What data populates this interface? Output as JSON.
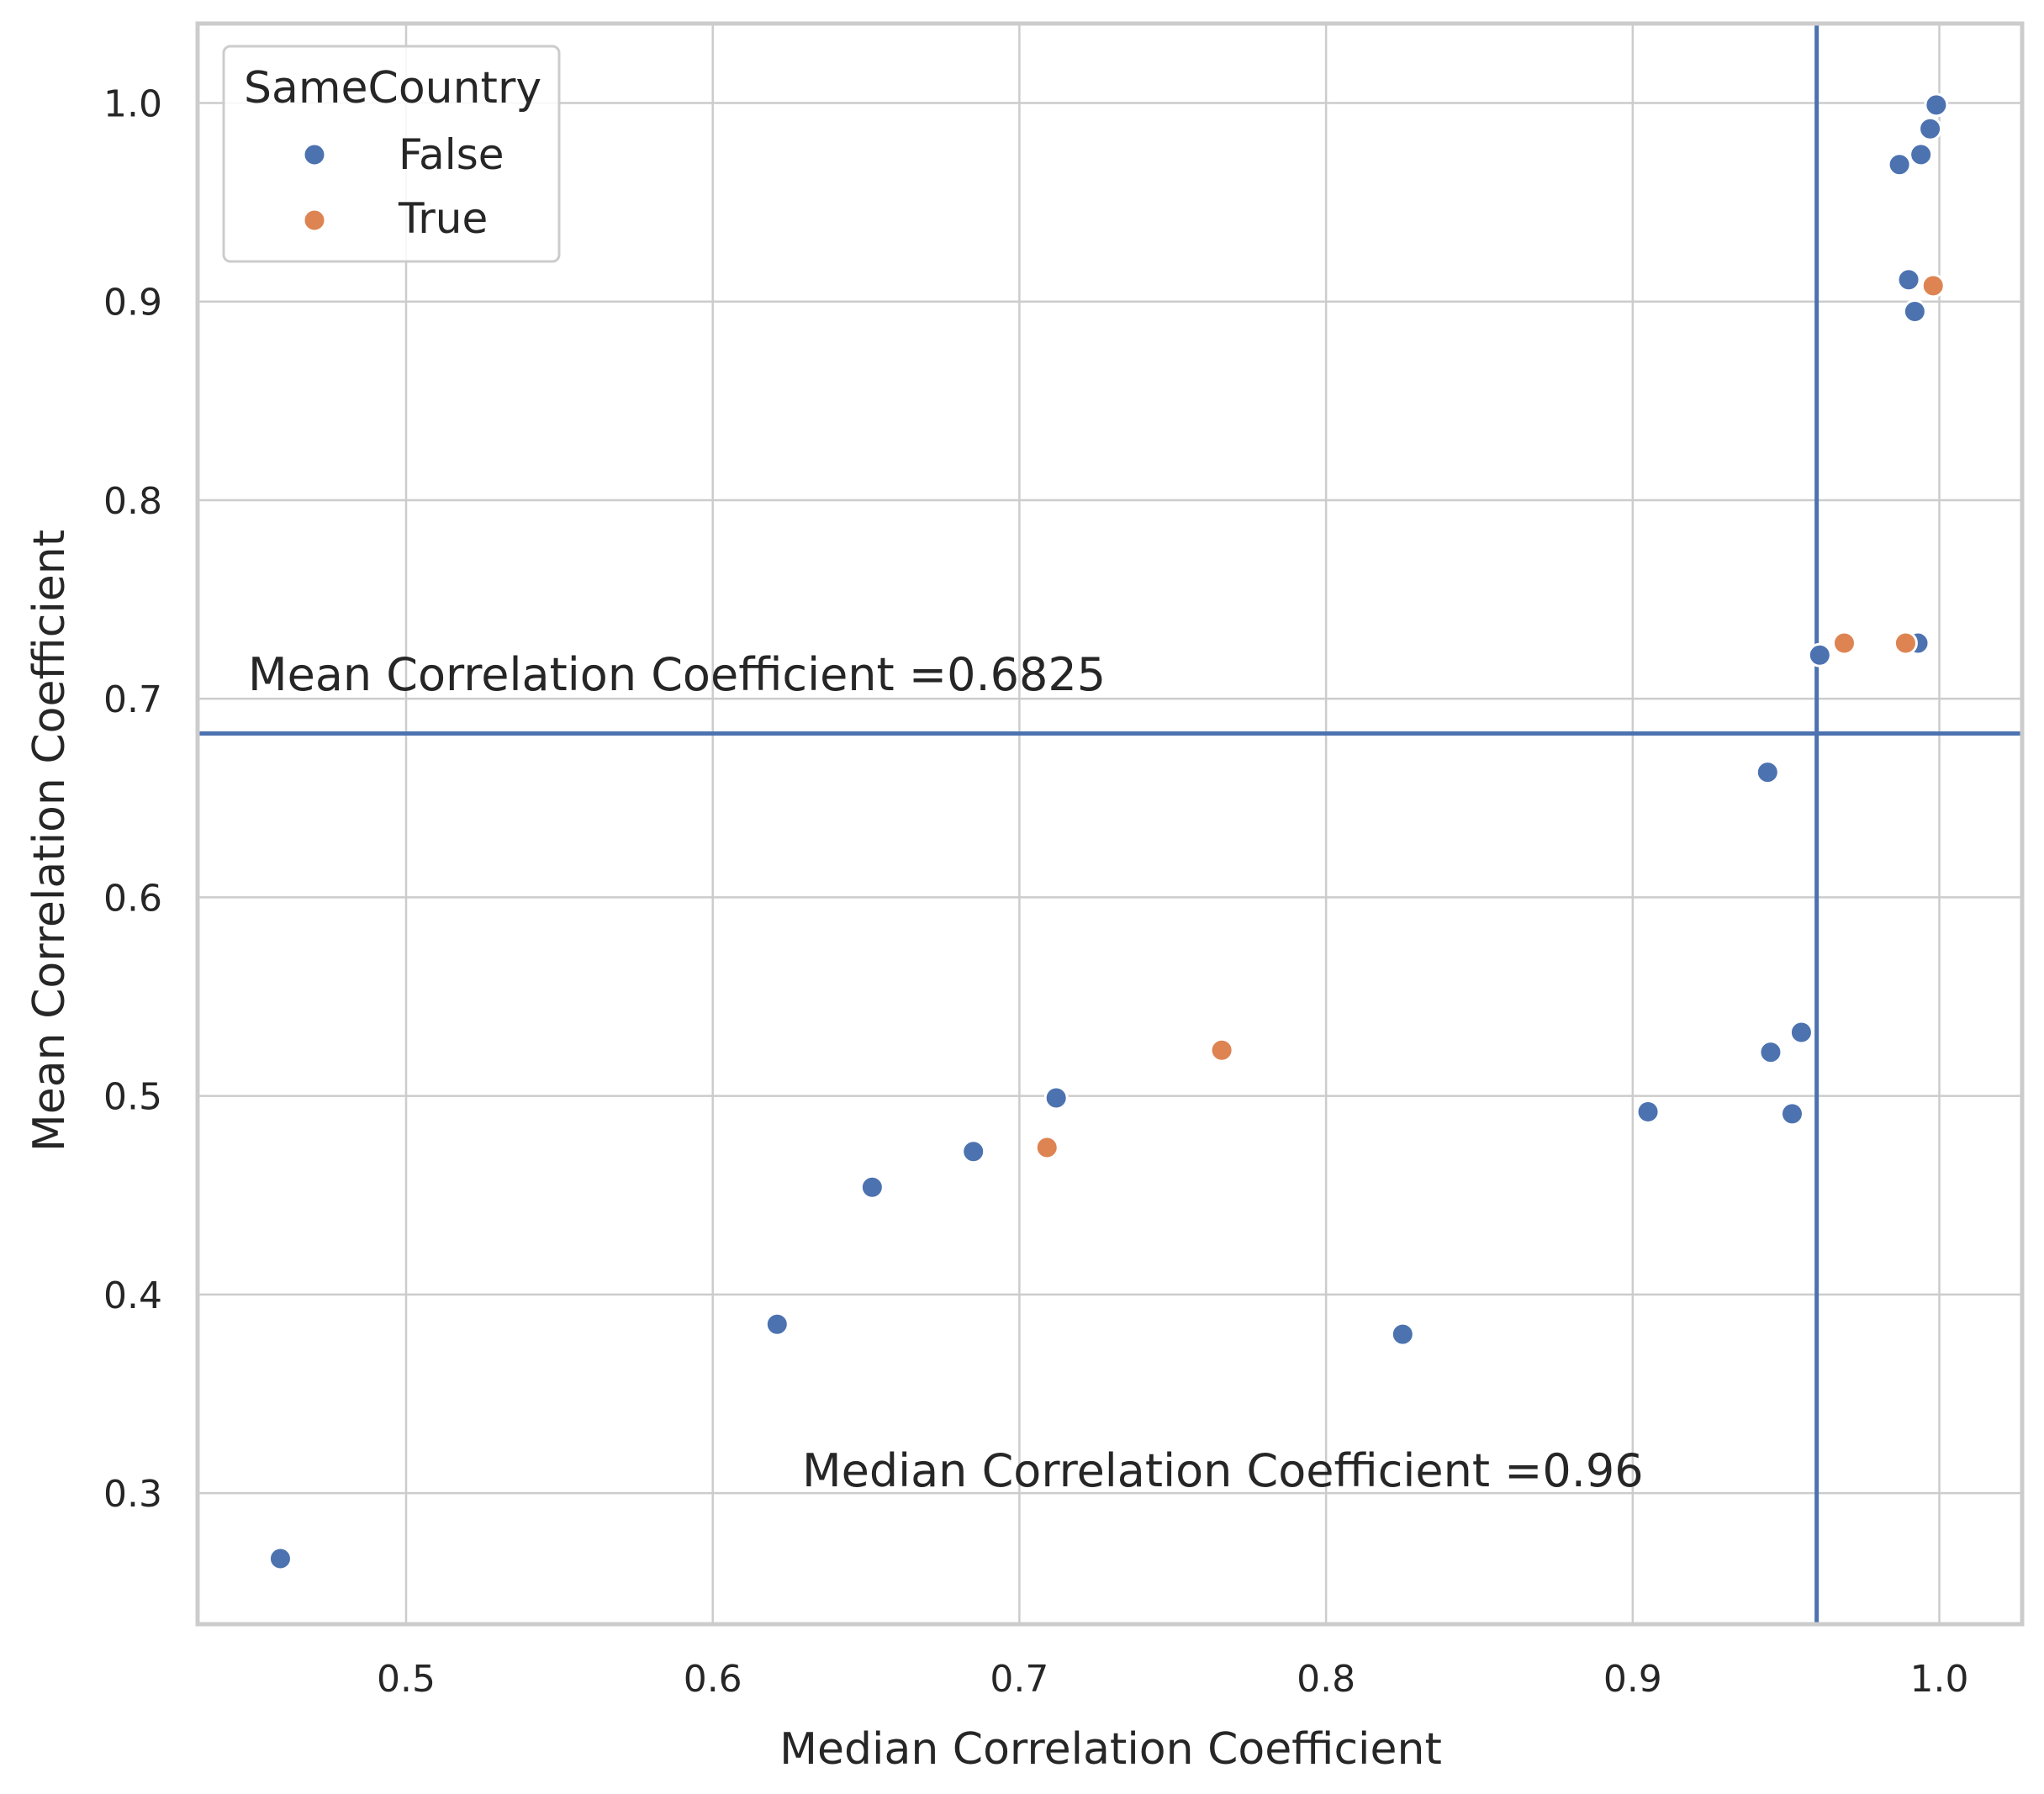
{
  "chart_data": {
    "type": "scatter",
    "title": "",
    "xlabel": "Median Correlation Coefficient",
    "ylabel": "Mean Correlation Coefficient",
    "xlim": [
      0.432,
      1.027
    ],
    "ylim": [
      0.234,
      1.04
    ],
    "grid": true,
    "xticks": [
      0.5,
      0.6,
      0.7,
      0.8,
      0.9,
      1.0
    ],
    "xtick_labels": [
      "0.5",
      "0.6",
      "0.7",
      "0.8",
      "0.9",
      "1.0"
    ],
    "yticks": [
      0.3,
      0.4,
      0.5,
      0.6,
      0.7,
      0.8,
      0.9,
      1.0
    ],
    "ytick_labels": [
      "0.3",
      "0.4",
      "0.5",
      "0.6",
      "0.7",
      "0.8",
      "0.9",
      "1.0"
    ],
    "legend": {
      "title": "SameCountry",
      "location": "top-left",
      "entries": [
        {
          "label": "False",
          "color": "#4c72b0"
        },
        {
          "label": "True",
          "color": "#dd8452"
        }
      ]
    },
    "reference_lines": [
      {
        "orientation": "horizontal",
        "value": 0.6825,
        "color": "#4c72b0",
        "label": "Mean Correlation Coefficient =0.6825"
      },
      {
        "orientation": "vertical",
        "value": 0.96,
        "color": "#4c72b0",
        "label": "Median Correlation Coefficient =0.96"
      }
    ],
    "series": [
      {
        "name": "False",
        "color": "#4c72b0",
        "points": [
          {
            "x": 0.459,
            "y": 0.267
          },
          {
            "x": 0.621,
            "y": 0.385
          },
          {
            "x": 0.652,
            "y": 0.454
          },
          {
            "x": 0.685,
            "y": 0.472
          },
          {
            "x": 0.712,
            "y": 0.499
          },
          {
            "x": 0.825,
            "y": 0.38
          },
          {
            "x": 0.905,
            "y": 0.492
          },
          {
            "x": 0.944,
            "y": 0.663
          },
          {
            "x": 0.945,
            "y": 0.522
          },
          {
            "x": 0.952,
            "y": 0.491
          },
          {
            "x": 0.955,
            "y": 0.532
          },
          {
            "x": 0.961,
            "y": 0.722
          },
          {
            "x": 0.987,
            "y": 0.969
          },
          {
            "x": 0.99,
            "y": 0.911
          },
          {
            "x": 0.992,
            "y": 0.895
          },
          {
            "x": 0.993,
            "y": 0.728
          },
          {
            "x": 0.994,
            "y": 0.974
          },
          {
            "x": 0.997,
            "y": 0.987
          },
          {
            "x": 0.999,
            "y": 0.999
          }
        ]
      },
      {
        "name": "True",
        "color": "#dd8452",
        "points": [
          {
            "x": 0.709,
            "y": 0.474
          },
          {
            "x": 0.766,
            "y": 0.523
          },
          {
            "x": 0.969,
            "y": 0.728
          },
          {
            "x": 0.989,
            "y": 0.728
          },
          {
            "x": 0.998,
            "y": 0.908
          }
        ]
      }
    ]
  }
}
